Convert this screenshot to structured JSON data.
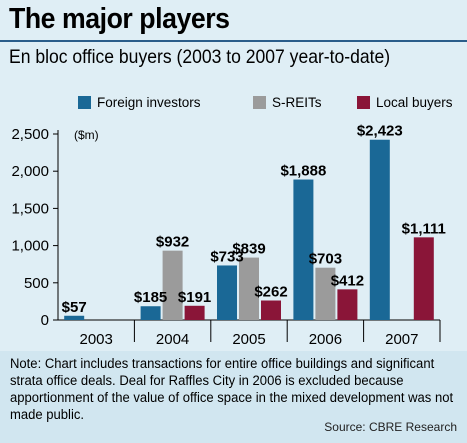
{
  "header": {
    "title": "The major players",
    "subtitle": "En bloc office buyers (2003 to 2007 year-to-date)"
  },
  "colors": {
    "foreign": "#1a6896",
    "sreits": "#9b9b9b",
    "local": "#8a1538",
    "background": "#dfeef5",
    "rule": "#2a5d8a"
  },
  "chart_data": {
    "type": "bar",
    "unit_label": "($m)",
    "categories": [
      "2003",
      "2004",
      "2005",
      "2006",
      "2007"
    ],
    "series": [
      {
        "name": "Foreign investors",
        "values": [
          57,
          185,
          733,
          1888,
          2423
        ],
        "labels": [
          "$57",
          "$185",
          "$733",
          "$1,888",
          "$2,423"
        ]
      },
      {
        "name": "S-REITs",
        "values": [
          0,
          932,
          839,
          703,
          0
        ],
        "labels": [
          "",
          "$932",
          "$839",
          "$703",
          ""
        ]
      },
      {
        "name": "Local buyers",
        "values": [
          0,
          191,
          262,
          412,
          1111
        ],
        "labels": [
          "",
          "$191",
          "$262",
          "$412",
          "$1,111"
        ]
      }
    ],
    "ylim": [
      0,
      2500
    ],
    "yticks": [
      0,
      500,
      1000,
      1500,
      2000,
      2500
    ],
    "ytick_labels": [
      "0",
      "500",
      "1,000",
      "1,500",
      "2,000",
      "2,500"
    ],
    "legend_position": "top",
    "grid": false
  },
  "footer": {
    "note": "Note: Chart includes transactions for entire office buildings and significant strata office deals. Deal for Raffles City in 2006 is excluded because apportionment of the value of office space in the mixed development was not made public.",
    "source": "Source: CBRE Research"
  }
}
